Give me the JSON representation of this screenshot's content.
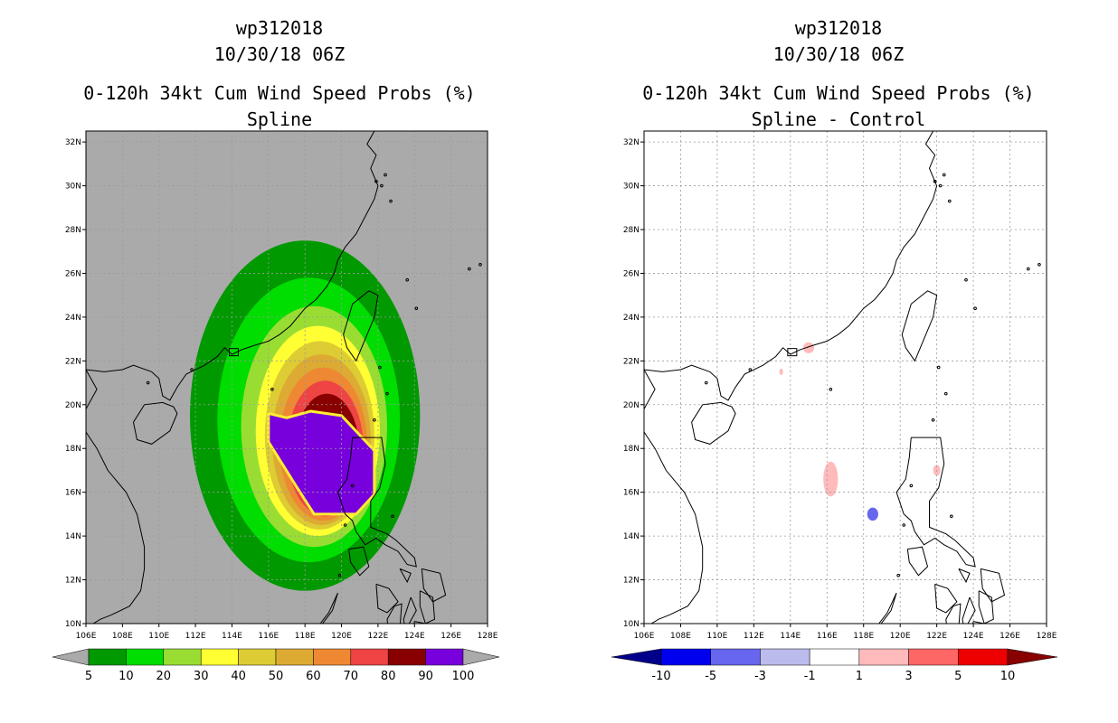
{
  "chart_data": [
    {
      "type": "contour-map",
      "title_lines": [
        "wp312018",
        "10/30/18 06Z",
        "0-120h 34kt Cum Wind Speed Probs (%)",
        "Spline"
      ],
      "lon_ticks": [
        "106E",
        "108E",
        "110E",
        "112E",
        "114E",
        "116E",
        "118E",
        "120E",
        "122E",
        "124E",
        "126E",
        "128E"
      ],
      "lat_ticks": [
        "10N",
        "12N",
        "14N",
        "16N",
        "18N",
        "20N",
        "22N",
        "24N",
        "26N",
        "28N",
        "30N",
        "32N"
      ],
      "lon_range": [
        106,
        128
      ],
      "lat_range": [
        10,
        32.5
      ],
      "background_color": "#aaaaaa",
      "colorbar": {
        "labels": [
          "5",
          "10",
          "20",
          "30",
          "40",
          "50",
          "60",
          "70",
          "80",
          "90",
          "100"
        ],
        "colors": [
          "#009900",
          "#00dd00",
          "#99dd33",
          "#ffff33",
          "#ddcc33",
          "#ddaa33",
          "#ee8833",
          "#ee4444",
          "#880000",
          "#7700dd"
        ],
        "left_extend": "#aaaaaa",
        "right_extend": "#aaaaaa"
      },
      "probability_contours": [
        {
          "level": 5,
          "center_lon": 118.0,
          "center_lat": 19.5,
          "rx_deg": 6.3,
          "ry_deg": 8.0
        },
        {
          "level": 10,
          "center_lon": 118.2,
          "center_lat": 19.3,
          "rx_deg": 5.0,
          "ry_deg": 6.5
        },
        {
          "level": 20,
          "center_lon": 118.5,
          "center_lat": 19.0,
          "rx_deg": 4.0,
          "ry_deg": 5.5
        },
        {
          "level": 30,
          "center_lon": 118.7,
          "center_lat": 18.8,
          "rx_deg": 3.4,
          "ry_deg": 4.8
        },
        {
          "level": 40,
          "center_lon": 118.8,
          "center_lat": 18.6,
          "rx_deg": 3.0,
          "ry_deg": 4.3
        },
        {
          "level": 50,
          "center_lon": 118.9,
          "center_lat": 18.4,
          "rx_deg": 2.7,
          "ry_deg": 3.9
        },
        {
          "level": 60,
          "center_lon": 119.0,
          "center_lat": 18.2,
          "rx_deg": 2.4,
          "ry_deg": 3.5
        },
        {
          "level": 70,
          "center_lon": 119.1,
          "center_lat": 18.0,
          "rx_deg": 2.1,
          "ry_deg": 3.1
        },
        {
          "level": 80,
          "center_lon": 119.2,
          "center_lat": 17.8,
          "rx_deg": 1.8,
          "ry_deg": 2.7
        }
      ],
      "polygon_100": [
        [
          116.0,
          19.6
        ],
        [
          117.0,
          19.4
        ],
        [
          118.3,
          19.7
        ],
        [
          120.0,
          19.5
        ],
        [
          121.8,
          17.9
        ],
        [
          121.8,
          15.9
        ],
        [
          120.8,
          15.0
        ],
        [
          118.5,
          15.0
        ],
        [
          117.5,
          16.3
        ],
        [
          116.0,
          18.3
        ]
      ]
    },
    {
      "type": "contour-map",
      "title_lines": [
        "wp312018",
        "10/30/18 06Z",
        "0-120h 34kt Cum Wind Speed Probs (%)",
        "Spline - Control"
      ],
      "lon_ticks": [
        "106E",
        "108E",
        "110E",
        "112E",
        "114E",
        "116E",
        "118E",
        "120E",
        "122E",
        "124E",
        "126E",
        "128E"
      ],
      "lat_ticks": [
        "10N",
        "12N",
        "14N",
        "16N",
        "18N",
        "20N",
        "22N",
        "24N",
        "26N",
        "28N",
        "30N",
        "32N"
      ],
      "lon_range": [
        106,
        128
      ],
      "lat_range": [
        10,
        32.5
      ],
      "background_color": "#ffffff",
      "colorbar": {
        "labels": [
          "-10",
          "-5",
          "-3",
          "-1",
          "1",
          "3",
          "5",
          "10"
        ],
        "colors": [
          "#0000ee",
          "#6666ee",
          "#bbbbee",
          "#ffffff",
          "#ffbbbb",
          "#ff6666",
          "#ee0000"
        ],
        "left_extend": "#00008b",
        "right_extend": "#880000"
      },
      "difference_blobs": [
        {
          "sign": "positive",
          "lon": 116.2,
          "lat": 16.6,
          "rx_deg": 0.4,
          "ry_deg": 0.8,
          "color": "#ffbbbb"
        },
        {
          "sign": "negative",
          "lon": 118.5,
          "lat": 15.0,
          "rx_deg": 0.3,
          "ry_deg": 0.3,
          "color": "#6666ee"
        },
        {
          "sign": "positive",
          "lon": 115.0,
          "lat": 22.6,
          "rx_deg": 0.3,
          "ry_deg": 0.25,
          "color": "#ffbbbb"
        },
        {
          "sign": "positive",
          "lon": 122.0,
          "lat": 17.0,
          "rx_deg": 0.2,
          "ry_deg": 0.25,
          "color": "#ffbbbb"
        },
        {
          "sign": "positive",
          "lon": 113.5,
          "lat": 21.5,
          "rx_deg": 0.1,
          "ry_deg": 0.15,
          "color": "#ffbbbb"
        }
      ]
    }
  ]
}
